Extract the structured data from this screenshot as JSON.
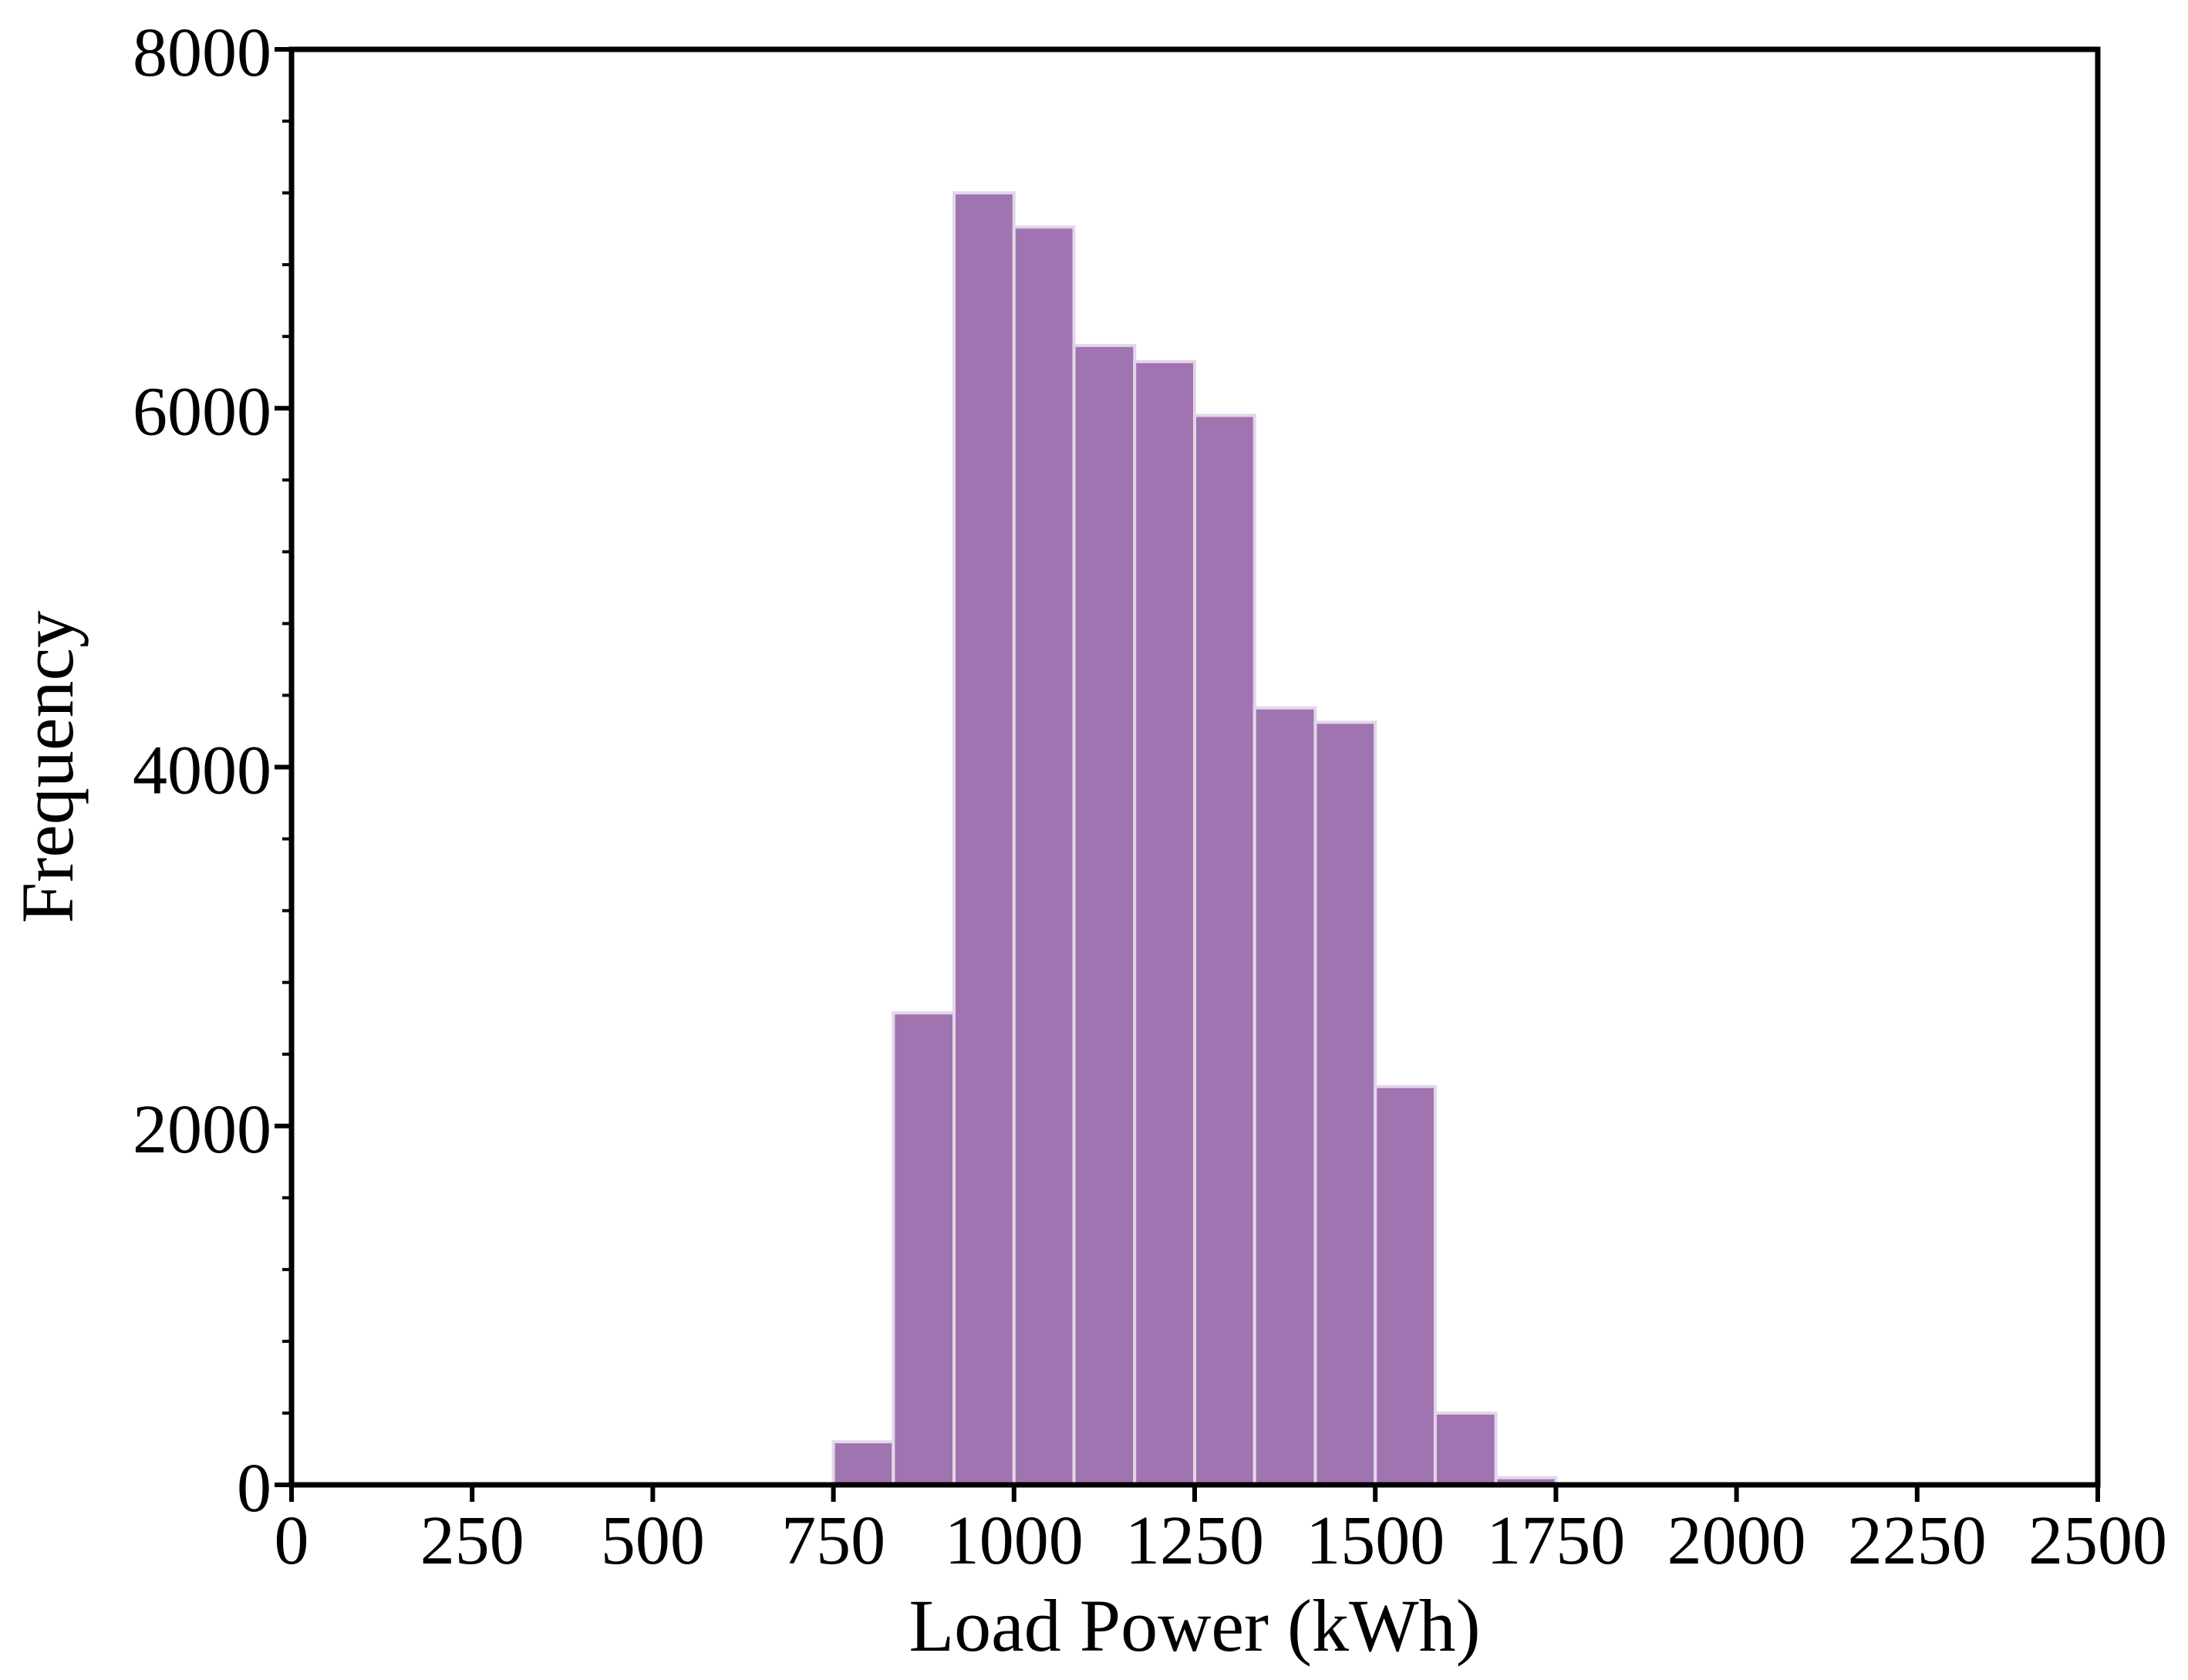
{
  "chart_data": {
    "type": "bar",
    "subtype": "histogram",
    "title": "",
    "xlabel": "Load Power (kWh)",
    "ylabel": "Frequency",
    "xlim": [
      0,
      2500
    ],
    "ylim": [
      0,
      8000
    ],
    "xticks": [
      0,
      250,
      500,
      750,
      1000,
      1250,
      1500,
      1750,
      2000,
      2250,
      2500
    ],
    "xtick_labels": [
      "0",
      "250",
      "500",
      "750",
      "1000",
      "1250",
      "1500",
      "1750",
      "2000",
      "2250",
      "2500"
    ],
    "yticks": [
      0,
      2000,
      4000,
      6000,
      8000
    ],
    "ytick_labels": [
      "0",
      "2000",
      "4000",
      "6000",
      "8000"
    ],
    "y_minor_step": 400,
    "grid": false,
    "legend": "none",
    "bar_color": "#a074b0",
    "bar_edge_color": "#e4d6ea",
    "bins": [
      {
        "start": 750,
        "end": 833,
        "count": 240
      },
      {
        "start": 833,
        "end": 917,
        "count": 2630
      },
      {
        "start": 917,
        "end": 1000,
        "count": 7200
      },
      {
        "start": 1000,
        "end": 1083,
        "count": 7010
      },
      {
        "start": 1083,
        "end": 1167,
        "count": 6350
      },
      {
        "start": 1167,
        "end": 1250,
        "count": 6260
      },
      {
        "start": 1250,
        "end": 1333,
        "count": 5960
      },
      {
        "start": 1333,
        "end": 1417,
        "count": 4330
      },
      {
        "start": 1417,
        "end": 1500,
        "count": 4250
      },
      {
        "start": 1500,
        "end": 1583,
        "count": 2220
      },
      {
        "start": 1583,
        "end": 1667,
        "count": 400
      },
      {
        "start": 1667,
        "end": 1750,
        "count": 40
      }
    ]
  }
}
